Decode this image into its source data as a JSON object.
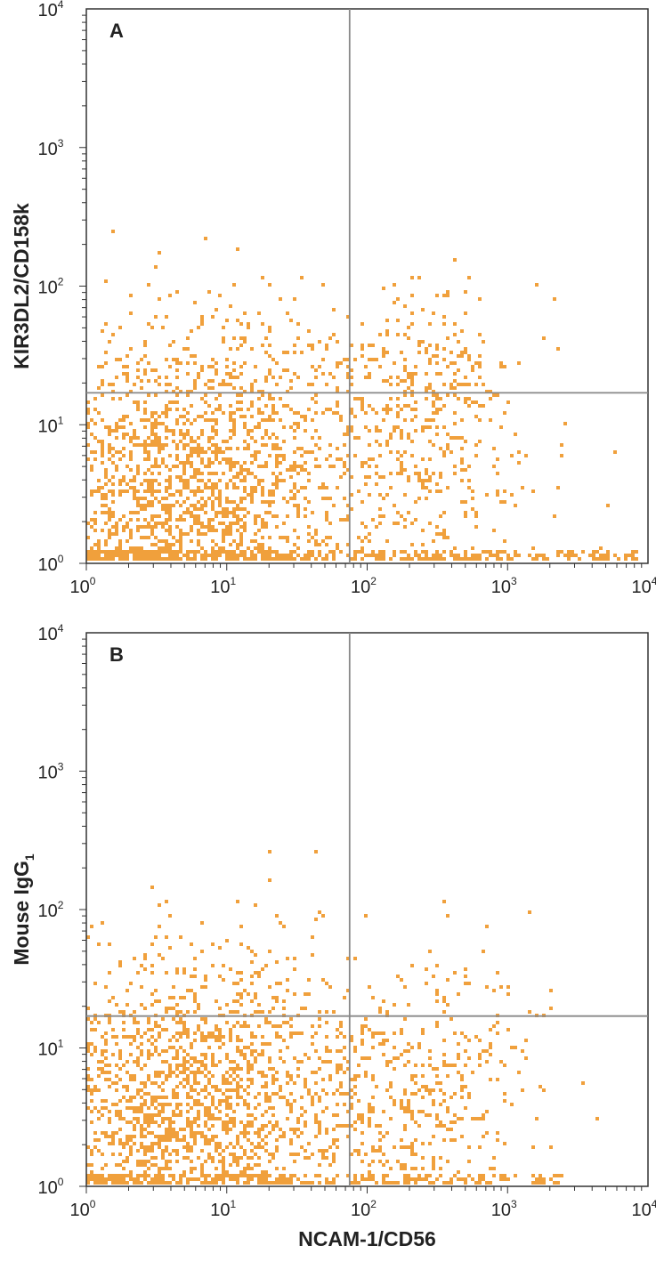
{
  "chart_data": [
    {
      "type": "scatter",
      "panel_label": "A",
      "xlabel": "",
      "ylabel": "KIR3DL2/CD158k",
      "x_scale": "log",
      "y_scale": "log",
      "xlim": [
        1,
        10000
      ],
      "ylim": [
        1,
        10000
      ],
      "x_ticks": [
        {
          "base": "10",
          "exp": "0"
        },
        {
          "base": "10",
          "exp": "1"
        },
        {
          "base": "10",
          "exp": "2"
        },
        {
          "base": "10",
          "exp": "3"
        },
        {
          "base": "10",
          "exp": "4"
        }
      ],
      "y_ticks": [
        {
          "base": "10",
          "exp": "0"
        },
        {
          "base": "10",
          "exp": "1"
        },
        {
          "base": "10",
          "exp": "2"
        },
        {
          "base": "10",
          "exp": "3"
        },
        {
          "base": "10",
          "exp": "4"
        }
      ],
      "quadrant_gates": {
        "x": 75,
        "y": 17
      },
      "point_color": "#f0a03c",
      "populations": [
        {
          "center": [
            7,
            4
          ],
          "spread": [
            0.6,
            0.55
          ],
          "n": 1500
        },
        {
          "center": [
            3,
            2.5
          ],
          "spread": [
            0.55,
            0.55
          ],
          "n": 450
        },
        {
          "center": [
            250,
            6
          ],
          "spread": [
            0.4,
            0.5
          ],
          "n": 380
        },
        {
          "center": [
            250,
            30
          ],
          "spread": [
            0.35,
            0.25
          ],
          "n": 130
        },
        {
          "center": [
            12,
            30
          ],
          "spread": [
            0.5,
            0.3
          ],
          "n": 40
        }
      ],
      "baseline_band": {
        "x_range": [
          1,
          9000
        ],
        "y": 1,
        "n": 500
      }
    },
    {
      "type": "scatter",
      "panel_label": "B",
      "xlabel": "NCAM-1/CD56",
      "ylabel": "Mouse IgG",
      "ylabel_subscript": "1",
      "x_scale": "log",
      "y_scale": "log",
      "xlim": [
        1,
        10000
      ],
      "ylim": [
        1,
        10000
      ],
      "x_ticks": [
        {
          "base": "10",
          "exp": "0"
        },
        {
          "base": "10",
          "exp": "1"
        },
        {
          "base": "10",
          "exp": "2"
        },
        {
          "base": "10",
          "exp": "3"
        },
        {
          "base": "10",
          "exp": "4"
        }
      ],
      "y_ticks": [
        {
          "base": "10",
          "exp": "0"
        },
        {
          "base": "10",
          "exp": "1"
        },
        {
          "base": "10",
          "exp": "2"
        },
        {
          "base": "10",
          "exp": "3"
        },
        {
          "base": "10",
          "exp": "4"
        }
      ],
      "quadrant_gates": {
        "x": 75,
        "y": 17
      },
      "point_color": "#f0a03c",
      "populations": [
        {
          "center": [
            7,
            4
          ],
          "spread": [
            0.6,
            0.55
          ],
          "n": 1500
        },
        {
          "center": [
            3,
            2.5
          ],
          "spread": [
            0.55,
            0.55
          ],
          "n": 450
        },
        {
          "center": [
            250,
            4
          ],
          "spread": [
            0.4,
            0.5
          ],
          "n": 420
        }
      ],
      "outliers": [
        [
          2,
          21
        ],
        [
          3,
          20
        ],
        [
          7,
          28
        ],
        [
          8,
          55
        ],
        [
          10,
          21
        ],
        [
          15,
          32
        ],
        [
          17,
          20
        ],
        [
          20,
          160
        ],
        [
          30,
          24
        ],
        [
          42,
          85
        ],
        [
          44,
          260
        ],
        [
          46,
          95
        ],
        [
          100,
          90
        ],
        [
          200,
          20
        ],
        [
          300,
          33
        ],
        [
          350,
          115
        ],
        [
          700,
          28
        ],
        [
          1000,
          28
        ],
        [
          1400,
          18
        ],
        [
          2000,
          19
        ]
      ],
      "baseline_band": {
        "x_range": [
          1,
          2500
        ],
        "y": 1,
        "n": 350
      }
    }
  ]
}
